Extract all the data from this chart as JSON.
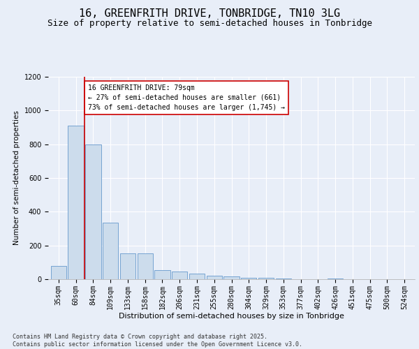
{
  "title": "16, GREENFRITH DRIVE, TONBRIDGE, TN10 3LG",
  "subtitle": "Size of property relative to semi-detached houses in Tonbridge",
  "xlabel": "Distribution of semi-detached houses by size in Tonbridge",
  "ylabel": "Number of semi-detached properties",
  "categories": [
    "35sqm",
    "60sqm",
    "84sqm",
    "109sqm",
    "133sqm",
    "158sqm",
    "182sqm",
    "206sqm",
    "231sqm",
    "255sqm",
    "280sqm",
    "304sqm",
    "329sqm",
    "353sqm",
    "377sqm",
    "402sqm",
    "426sqm",
    "451sqm",
    "475sqm",
    "500sqm",
    "524sqm"
  ],
  "values": [
    80,
    910,
    800,
    335,
    155,
    155,
    55,
    45,
    35,
    20,
    15,
    10,
    8,
    5,
    0,
    0,
    5,
    0,
    0,
    0,
    0
  ],
  "bar_color": "#ccdcec",
  "bar_edge_color": "#6699cc",
  "marker_line_color": "#cc0000",
  "annotation_text": "16 GREENFRITH DRIVE: 79sqm\n← 27% of semi-detached houses are smaller (661)\n73% of semi-detached houses are larger (1,745) →",
  "annotation_box_color": "#ffffff",
  "annotation_box_edge": "#cc0000",
  "ylim": [
    0,
    1200
  ],
  "yticks": [
    0,
    200,
    400,
    600,
    800,
    1000,
    1200
  ],
  "background_color": "#e8eef8",
  "grid_color": "#ffffff",
  "footer_text": "Contains HM Land Registry data © Crown copyright and database right 2025.\nContains public sector information licensed under the Open Government Licence v3.0.",
  "title_fontsize": 11,
  "subtitle_fontsize": 9,
  "xlabel_fontsize": 8,
  "ylabel_fontsize": 7.5,
  "tick_fontsize": 7,
  "annotation_fontsize": 7,
  "footer_fontsize": 6
}
